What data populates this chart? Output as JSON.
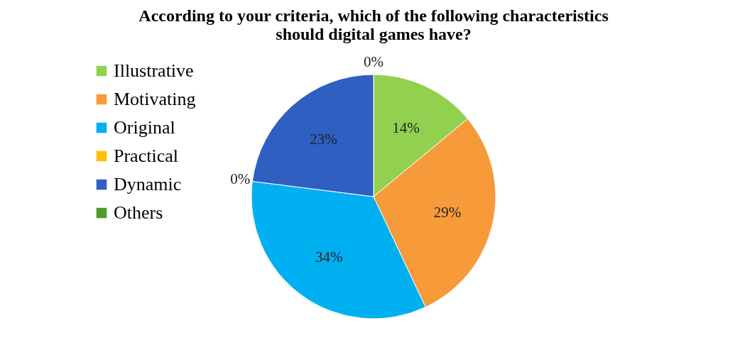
{
  "chart_data": {
    "type": "pie",
    "title": "According to your criteria, which of the following characteristics should digital games have?",
    "categories": [
      "Illustrative",
      "Motivating",
      "Original",
      "Practical",
      "Dynamic",
      "Others"
    ],
    "values": [
      14,
      29,
      34,
      0,
      23,
      0
    ],
    "colors": [
      "#92d050",
      "#f79a3a",
      "#00b0f0",
      "#ffc000",
      "#2f5fc0",
      "#4f9a2a"
    ],
    "value_labels": [
      "14%",
      "29%",
      "34%",
      "0%",
      "23%",
      "0%"
    ],
    "legend": "left"
  }
}
